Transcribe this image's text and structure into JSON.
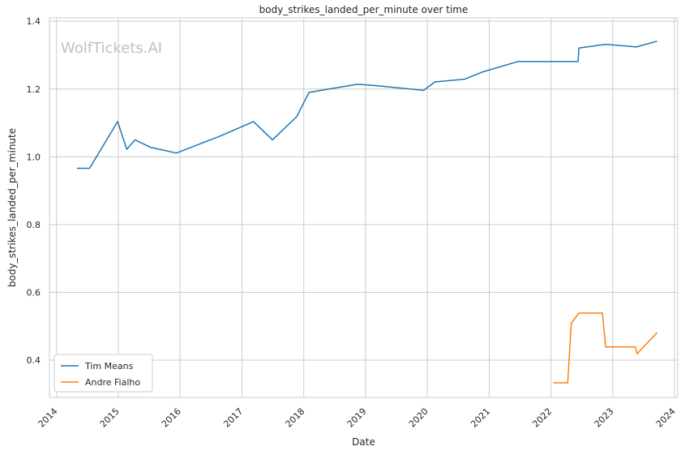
{
  "chart_data": {
    "type": "line",
    "title": "body_strikes_landed_per_minute over time",
    "xlabel": "Date",
    "ylabel": "body_strikes_landed_per_minute",
    "watermark": "WolfTickets.AI",
    "x_ticks": [
      "2014",
      "2015",
      "2016",
      "2017",
      "2018",
      "2019",
      "2020",
      "2021",
      "2022",
      "2023",
      "2024"
    ],
    "y_ticks": [
      "0.4",
      "0.6",
      "0.8",
      "1.0",
      "1.2",
      "1.4"
    ],
    "ylim": [
      0.29,
      1.41
    ],
    "xlim": [
      "2013-11-20",
      "2024-01-20"
    ],
    "grid": true,
    "legend_position": "bottom-left",
    "series": [
      {
        "name": "Tim Means",
        "color": "#1f77b4",
        "points": [
          [
            "2014-05-01",
            0.966
          ],
          [
            "2014-07-15",
            0.966
          ],
          [
            "2014-12-28",
            1.104
          ],
          [
            "2015-02-20",
            1.022
          ],
          [
            "2015-04-10",
            1.05
          ],
          [
            "2015-07-10",
            1.028
          ],
          [
            "2015-12-10",
            1.011
          ],
          [
            "2016-08-20",
            1.06
          ],
          [
            "2017-03-10",
            1.104
          ],
          [
            "2017-06-30",
            1.05
          ],
          [
            "2017-11-20",
            1.118
          ],
          [
            "2018-02-01",
            1.19
          ],
          [
            "2018-11-15",
            1.214
          ],
          [
            "2019-02-15",
            1.211
          ],
          [
            "2019-12-10",
            1.196
          ],
          [
            "2020-02-15",
            1.221
          ],
          [
            "2020-08-10",
            1.229
          ],
          [
            "2020-11-20",
            1.25
          ],
          [
            "2021-06-20",
            1.281
          ],
          [
            "2022-06-10",
            1.281
          ],
          [
            "2022-06-15",
            1.321
          ],
          [
            "2022-11-20",
            1.332
          ],
          [
            "2023-05-20",
            1.324
          ],
          [
            "2023-09-20",
            1.341
          ]
        ]
      },
      {
        "name": "Andre Fialho",
        "color": "#ff7f0e",
        "points": [
          [
            "2022-01-15",
            0.333
          ],
          [
            "2022-04-10",
            0.333
          ],
          [
            "2022-05-01",
            0.509
          ],
          [
            "2022-06-15",
            0.539
          ],
          [
            "2022-11-01",
            0.539
          ],
          [
            "2022-11-20",
            0.439
          ],
          [
            "2023-05-15",
            0.439
          ],
          [
            "2023-05-25",
            0.419
          ],
          [
            "2023-09-20",
            0.481
          ]
        ]
      }
    ]
  }
}
